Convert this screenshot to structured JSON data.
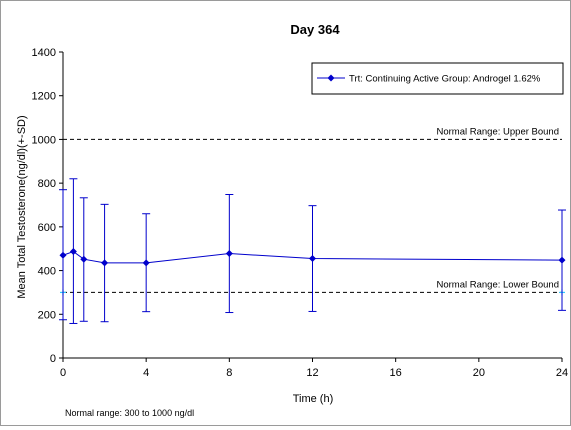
{
  "chart_data": {
    "type": "line",
    "title": "Day 364",
    "xlabel": "Time (h)",
    "ylabel": "Mean Total Testosterone(ng/dl)(+-SD)",
    "xlim": [
      0,
      24
    ],
    "ylim": [
      0,
      1400
    ],
    "x_ticks": [
      "0",
      "4",
      "8",
      "12",
      "16",
      "20",
      "24"
    ],
    "y_ticks": [
      "0",
      "200",
      "400",
      "600",
      "800",
      "1000",
      "1200",
      "1400"
    ],
    "grid": false,
    "legend_position": "top-right",
    "series": [
      {
        "name": "Trt: Continuing Active Group: Androgel 1.62%",
        "color": "#0000cc",
        "marker": "diamond",
        "points": [
          {
            "x": 0,
            "y": 470,
            "sd_low": 175,
            "sd_high": 770
          },
          {
            "x": 0.5,
            "y": 487,
            "sd_low": 158,
            "sd_high": 820
          },
          {
            "x": 1,
            "y": 452,
            "sd_low": 168,
            "sd_high": 733
          },
          {
            "x": 2,
            "y": 435,
            "sd_low": 166,
            "sd_high": 703
          },
          {
            "x": 4,
            "y": 435,
            "sd_low": 212,
            "sd_high": 660
          },
          {
            "x": 8,
            "y": 478,
            "sd_low": 208,
            "sd_high": 748
          },
          {
            "x": 12,
            "y": 455,
            "sd_low": 213,
            "sd_high": 697
          },
          {
            "x": 24,
            "y": 448,
            "sd_low": 218,
            "sd_high": 677
          }
        ]
      }
    ],
    "reference_lines": [
      {
        "y": 1000,
        "label": "Normal Range: Upper Bound",
        "style": "dashed"
      },
      {
        "y": 300,
        "label": "Normal Range: Lower Bound",
        "style": "dashed",
        "end_markers_color": "#33ccff"
      }
    ],
    "footnote": "Normal range: 300 to 1000 ng/dl"
  }
}
